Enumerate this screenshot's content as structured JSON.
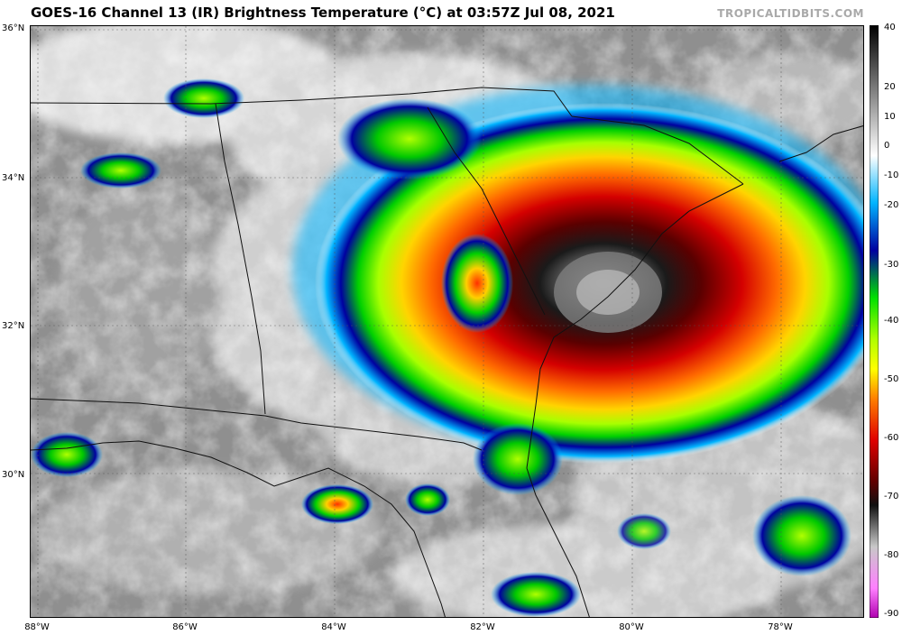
{
  "header": {
    "title": "GOES-16 Channel 13 (IR) Brightness Temperature (°C) at 03:57Z Jul 08, 2021",
    "credit": "TROPICALTIDBITS.COM"
  },
  "map": {
    "lat_labels": [
      "36°N",
      "34°N",
      "32°N",
      "30°N"
    ],
    "lon_labels": [
      "88°W",
      "86°W",
      "84°W",
      "82°W",
      "80°W",
      "78°W"
    ],
    "storm_center_desc": "cold cloud tops offshore South Carolina"
  },
  "colorbar": {
    "ticks": [
      "40",
      "20",
      "10",
      "0",
      "-10",
      "-20",
      "-30",
      "-40",
      "-50",
      "-60",
      "-70",
      "-80",
      "-90"
    ],
    "colors": {
      "top": "#000000",
      "white": "#ffffff",
      "cyan": "#00b4ff",
      "blue": "#0000a0",
      "green": "#00e000",
      "yellow": "#ffff00",
      "orange": "#ff8000",
      "red": "#e00000",
      "darkred": "#600000",
      "black": "#101010",
      "gray": "#c8c8c8",
      "magenta": "#b000b0"
    }
  }
}
